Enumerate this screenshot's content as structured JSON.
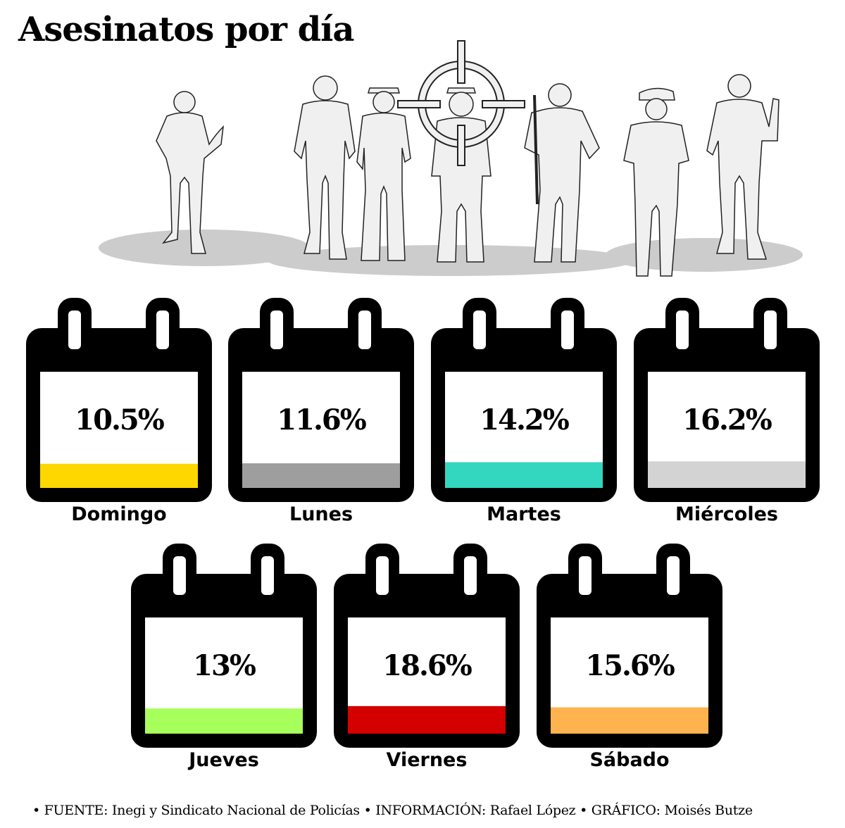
{
  "title": "Asesinatos por día",
  "chart_data": {
    "type": "table",
    "title": "Asesinatos por día",
    "categories": [
      "Domingo",
      "Lunes",
      "Martes",
      "Miércoles",
      "Jueves",
      "Viernes",
      "Sábado"
    ],
    "values": [
      10.5,
      11.6,
      14.2,
      16.2,
      13,
      18.6,
      15.6
    ],
    "value_labels": [
      "10.5%",
      "11.6%",
      "14.2%",
      "16.2%",
      "13%",
      "18.6%",
      "15.6%"
    ],
    "unit": "%",
    "colors": [
      "#ffd700",
      "#9e9e9e",
      "#33d6bf",
      "#d3d3d3",
      "#a7ff5c",
      "#d40000",
      "#ffb34f"
    ]
  },
  "illustration": {
    "silhouette_fill": "#f0f0f0",
    "shadow_fill": "#cccccc",
    "icons": [
      "police-silhouette-icon",
      "crosshair-icon"
    ]
  },
  "footer": {
    "text": "• FUENTE: Inegi y Sindicato Nacional de Policías • INFORMACIÓN: Rafael López • GRÁFICO: Moisés Butze"
  }
}
